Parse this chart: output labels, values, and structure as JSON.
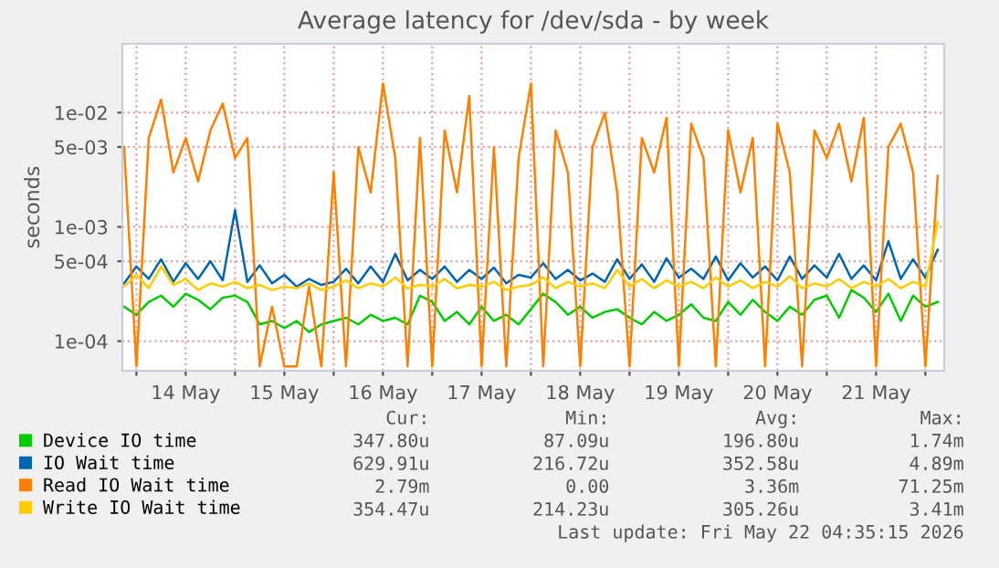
{
  "chart_data": {
    "type": "line",
    "title": "Average latency for /dev/sda - by week",
    "ylabel": "seconds",
    "log": "y",
    "grid": true,
    "legend": "bottom",
    "marker": "none",
    "line_style": "solid",
    "x": [
      "2026-05-13T21:00",
      "2026-05-14T00:00",
      "2026-05-14T03:00",
      "2026-05-14T06:00",
      "2026-05-14T09:00",
      "2026-05-14T12:00",
      "2026-05-14T15:00",
      "2026-05-14T18:00",
      "2026-05-14T21:00",
      "2026-05-15T00:00",
      "2026-05-15T03:00",
      "2026-05-15T06:00",
      "2026-05-15T09:00",
      "2026-05-15T12:00",
      "2026-05-15T15:00",
      "2026-05-15T18:00",
      "2026-05-15T21:00",
      "2026-05-16T00:00",
      "2026-05-16T03:00",
      "2026-05-16T06:00",
      "2026-05-16T09:00",
      "2026-05-16T12:00",
      "2026-05-16T15:00",
      "2026-05-16T18:00",
      "2026-05-16T21:00",
      "2026-05-17T00:00",
      "2026-05-17T03:00",
      "2026-05-17T06:00",
      "2026-05-17T09:00",
      "2026-05-17T12:00",
      "2026-05-17T15:00",
      "2026-05-17T18:00",
      "2026-05-17T21:00",
      "2026-05-18T00:00",
      "2026-05-18T03:00",
      "2026-05-18T06:00",
      "2026-05-18T09:00",
      "2026-05-18T12:00",
      "2026-05-18T15:00",
      "2026-05-18T18:00",
      "2026-05-18T21:00",
      "2026-05-19T00:00",
      "2026-05-19T03:00",
      "2026-05-19T06:00",
      "2026-05-19T09:00",
      "2026-05-19T12:00",
      "2026-05-19T15:00",
      "2026-05-19T18:00",
      "2026-05-19T21:00",
      "2026-05-20T00:00",
      "2026-05-20T03:00",
      "2026-05-20T06:00",
      "2026-05-20T09:00",
      "2026-05-20T12:00",
      "2026-05-20T15:00",
      "2026-05-20T18:00",
      "2026-05-20T21:00",
      "2026-05-21T00:00",
      "2026-05-21T03:00",
      "2026-05-21T06:00",
      "2026-05-21T09:00",
      "2026-05-21T12:00",
      "2026-05-21T15:00",
      "2026-05-21T18:00",
      "2026-05-21T21:00",
      "2026-05-22T00:00",
      "2026-05-22T03:00"
    ],
    "xlim": [
      "2026-05-13T20:35",
      "2026-05-22T04:35"
    ],
    "xticks": [
      {
        "value": "2026-05-14T00:00",
        "label": null
      },
      {
        "value": "2026-05-14T12:00",
        "label": "14 May"
      },
      {
        "value": "2026-05-15T00:00",
        "label": null
      },
      {
        "value": "2026-05-15T12:00",
        "label": "15 May"
      },
      {
        "value": "2026-05-16T00:00",
        "label": null
      },
      {
        "value": "2026-05-16T12:00",
        "label": "16 May"
      },
      {
        "value": "2026-05-17T00:00",
        "label": null
      },
      {
        "value": "2026-05-17T12:00",
        "label": "17 May"
      },
      {
        "value": "2026-05-18T00:00",
        "label": null
      },
      {
        "value": "2026-05-18T12:00",
        "label": "18 May"
      },
      {
        "value": "2026-05-19T00:00",
        "label": null
      },
      {
        "value": "2026-05-19T12:00",
        "label": "19 May"
      },
      {
        "value": "2026-05-20T00:00",
        "label": null
      },
      {
        "value": "2026-05-20T12:00",
        "label": "20 May"
      },
      {
        "value": "2026-05-21T00:00",
        "label": null
      },
      {
        "value": "2026-05-21T12:00",
        "label": "21 May"
      },
      {
        "value": "2026-05-22T00:00",
        "label": null
      }
    ],
    "ylim": [
      5.5e-05,
      0.04
    ],
    "yticks": [
      {
        "value": 0.0001,
        "label": "1e-04"
      },
      {
        "value": 0.0005,
        "label": "5e-04"
      },
      {
        "value": 0.001,
        "label": "1e-03"
      },
      {
        "value": 0.005,
        "label": "5e-03"
      },
      {
        "value": 0.01,
        "label": "1e-02"
      }
    ],
    "series": [
      {
        "name": "Device IO time",
        "color": "#00cc00",
        "values": [
          0.0002,
          0.00017,
          0.00022,
          0.00025,
          0.0002,
          0.00026,
          0.00023,
          0.00019,
          0.00024,
          0.00025,
          0.00022,
          0.00014,
          0.00015,
          0.00013,
          0.00015,
          0.00012,
          0.00014,
          0.00015,
          0.00016,
          0.00014,
          0.00017,
          0.00015,
          0.00016,
          0.00014,
          0.00025,
          0.00022,
          0.00015,
          0.00018,
          0.00014,
          0.0002,
          0.00015,
          0.00017,
          0.00014,
          0.00019,
          0.00026,
          0.00022,
          0.00017,
          0.0002,
          0.00016,
          0.00018,
          0.00019,
          0.00016,
          0.00014,
          0.00018,
          0.00015,
          0.00017,
          0.00021,
          0.00016,
          0.00015,
          0.00022,
          0.00017,
          0.00023,
          0.00018,
          0.00015,
          0.0002,
          0.00017,
          0.00023,
          0.00025,
          0.00016,
          0.00028,
          0.00024,
          0.00018,
          0.00026,
          0.00015,
          0.00025,
          0.0002,
          0.00022
        ]
      },
      {
        "name": "IO Wait time",
        "color": "#0066b3",
        "values": [
          0.00032,
          0.00045,
          0.00035,
          0.00052,
          0.00033,
          0.00048,
          0.00035,
          0.0005,
          0.00034,
          0.0014,
          0.00033,
          0.00046,
          0.00032,
          0.00038,
          0.0003,
          0.00035,
          0.00031,
          0.00033,
          0.00043,
          0.00032,
          0.00045,
          0.00033,
          0.00058,
          0.00034,
          0.00042,
          0.00035,
          0.00045,
          0.00033,
          0.00042,
          0.00035,
          0.00044,
          0.00032,
          0.00038,
          0.00036,
          0.00048,
          0.00035,
          0.00042,
          0.00034,
          0.00039,
          0.00033,
          0.00052,
          0.00035,
          0.00047,
          0.00033,
          0.00053,
          0.00036,
          0.00043,
          0.00035,
          0.00055,
          0.00034,
          0.00048,
          0.00036,
          0.00045,
          0.00034,
          0.00055,
          0.00035,
          0.00046,
          0.00036,
          0.00058,
          0.00035,
          0.00046,
          0.00034,
          0.00075,
          0.00035,
          0.00052,
          0.00036,
          0.00063
        ]
      },
      {
        "name": "Read IO Wait time",
        "color": "#ff8000",
        "values": [
          0.005,
          6e-05,
          0.006,
          0.013,
          0.003,
          0.006,
          0.0025,
          0.007,
          0.012,
          0.004,
          0.006,
          6e-05,
          0.0002,
          6e-05,
          6e-05,
          0.0003,
          6e-05,
          0.003,
          6e-05,
          0.005,
          0.002,
          0.018,
          0.004,
          6e-05,
          0.006,
          6e-05,
          0.007,
          0.002,
          0.014,
          6e-05,
          0.005,
          6e-05,
          0.004,
          0.018,
          6e-05,
          0.007,
          0.003,
          6e-05,
          0.005,
          0.01,
          0.002,
          6e-05,
          0.006,
          0.003,
          0.009,
          6e-05,
          0.008,
          0.004,
          6e-05,
          0.007,
          0.002,
          0.006,
          6e-05,
          0.008,
          0.003,
          6e-05,
          0.007,
          0.004,
          0.008,
          0.0025,
          0.009,
          6e-05,
          0.005,
          0.008,
          0.003,
          6e-05,
          0.0028
        ]
      },
      {
        "name": "Write IO Wait time",
        "color": "#ffcc00",
        "values": [
          0.0003,
          0.00038,
          0.00029,
          0.00045,
          0.00031,
          0.00035,
          0.00028,
          0.00032,
          0.0003,
          0.00033,
          0.00029,
          0.00031,
          0.00028,
          0.0003,
          0.00029,
          0.00032,
          0.00028,
          0.0003,
          0.00034,
          0.00029,
          0.00032,
          0.0003,
          0.00036,
          0.00029,
          0.00031,
          0.0003,
          0.00035,
          0.00029,
          0.00031,
          0.0003,
          0.00033,
          0.00028,
          0.0003,
          0.00031,
          0.00036,
          0.00029,
          0.00033,
          0.0003,
          0.00032,
          0.00029,
          0.00042,
          0.0003,
          0.00035,
          0.00029,
          0.00034,
          0.0003,
          0.00033,
          0.00029,
          0.00036,
          0.0003,
          0.00034,
          0.00029,
          0.00033,
          0.0003,
          0.00037,
          0.00029,
          0.00032,
          0.0003,
          0.00035,
          0.00029,
          0.00033,
          0.0003,
          0.00035,
          0.00029,
          0.00033,
          0.0003,
          0.0011
        ]
      }
    ],
    "annotations": [
      "Cur:",
      "Min:",
      "Avg:",
      "Max:",
      "347.80u",
      "87.09u",
      "196.80u",
      "1.74m",
      "629.91u",
      "216.72u",
      "352.58u",
      "4.89m",
      "2.79m",
      "0.00",
      "3.36m",
      "71.25m",
      "354.47u",
      "214.23u",
      "305.26u",
      "3.41m",
      "Last update: Fri May 22 04:35:15 2026"
    ]
  }
}
